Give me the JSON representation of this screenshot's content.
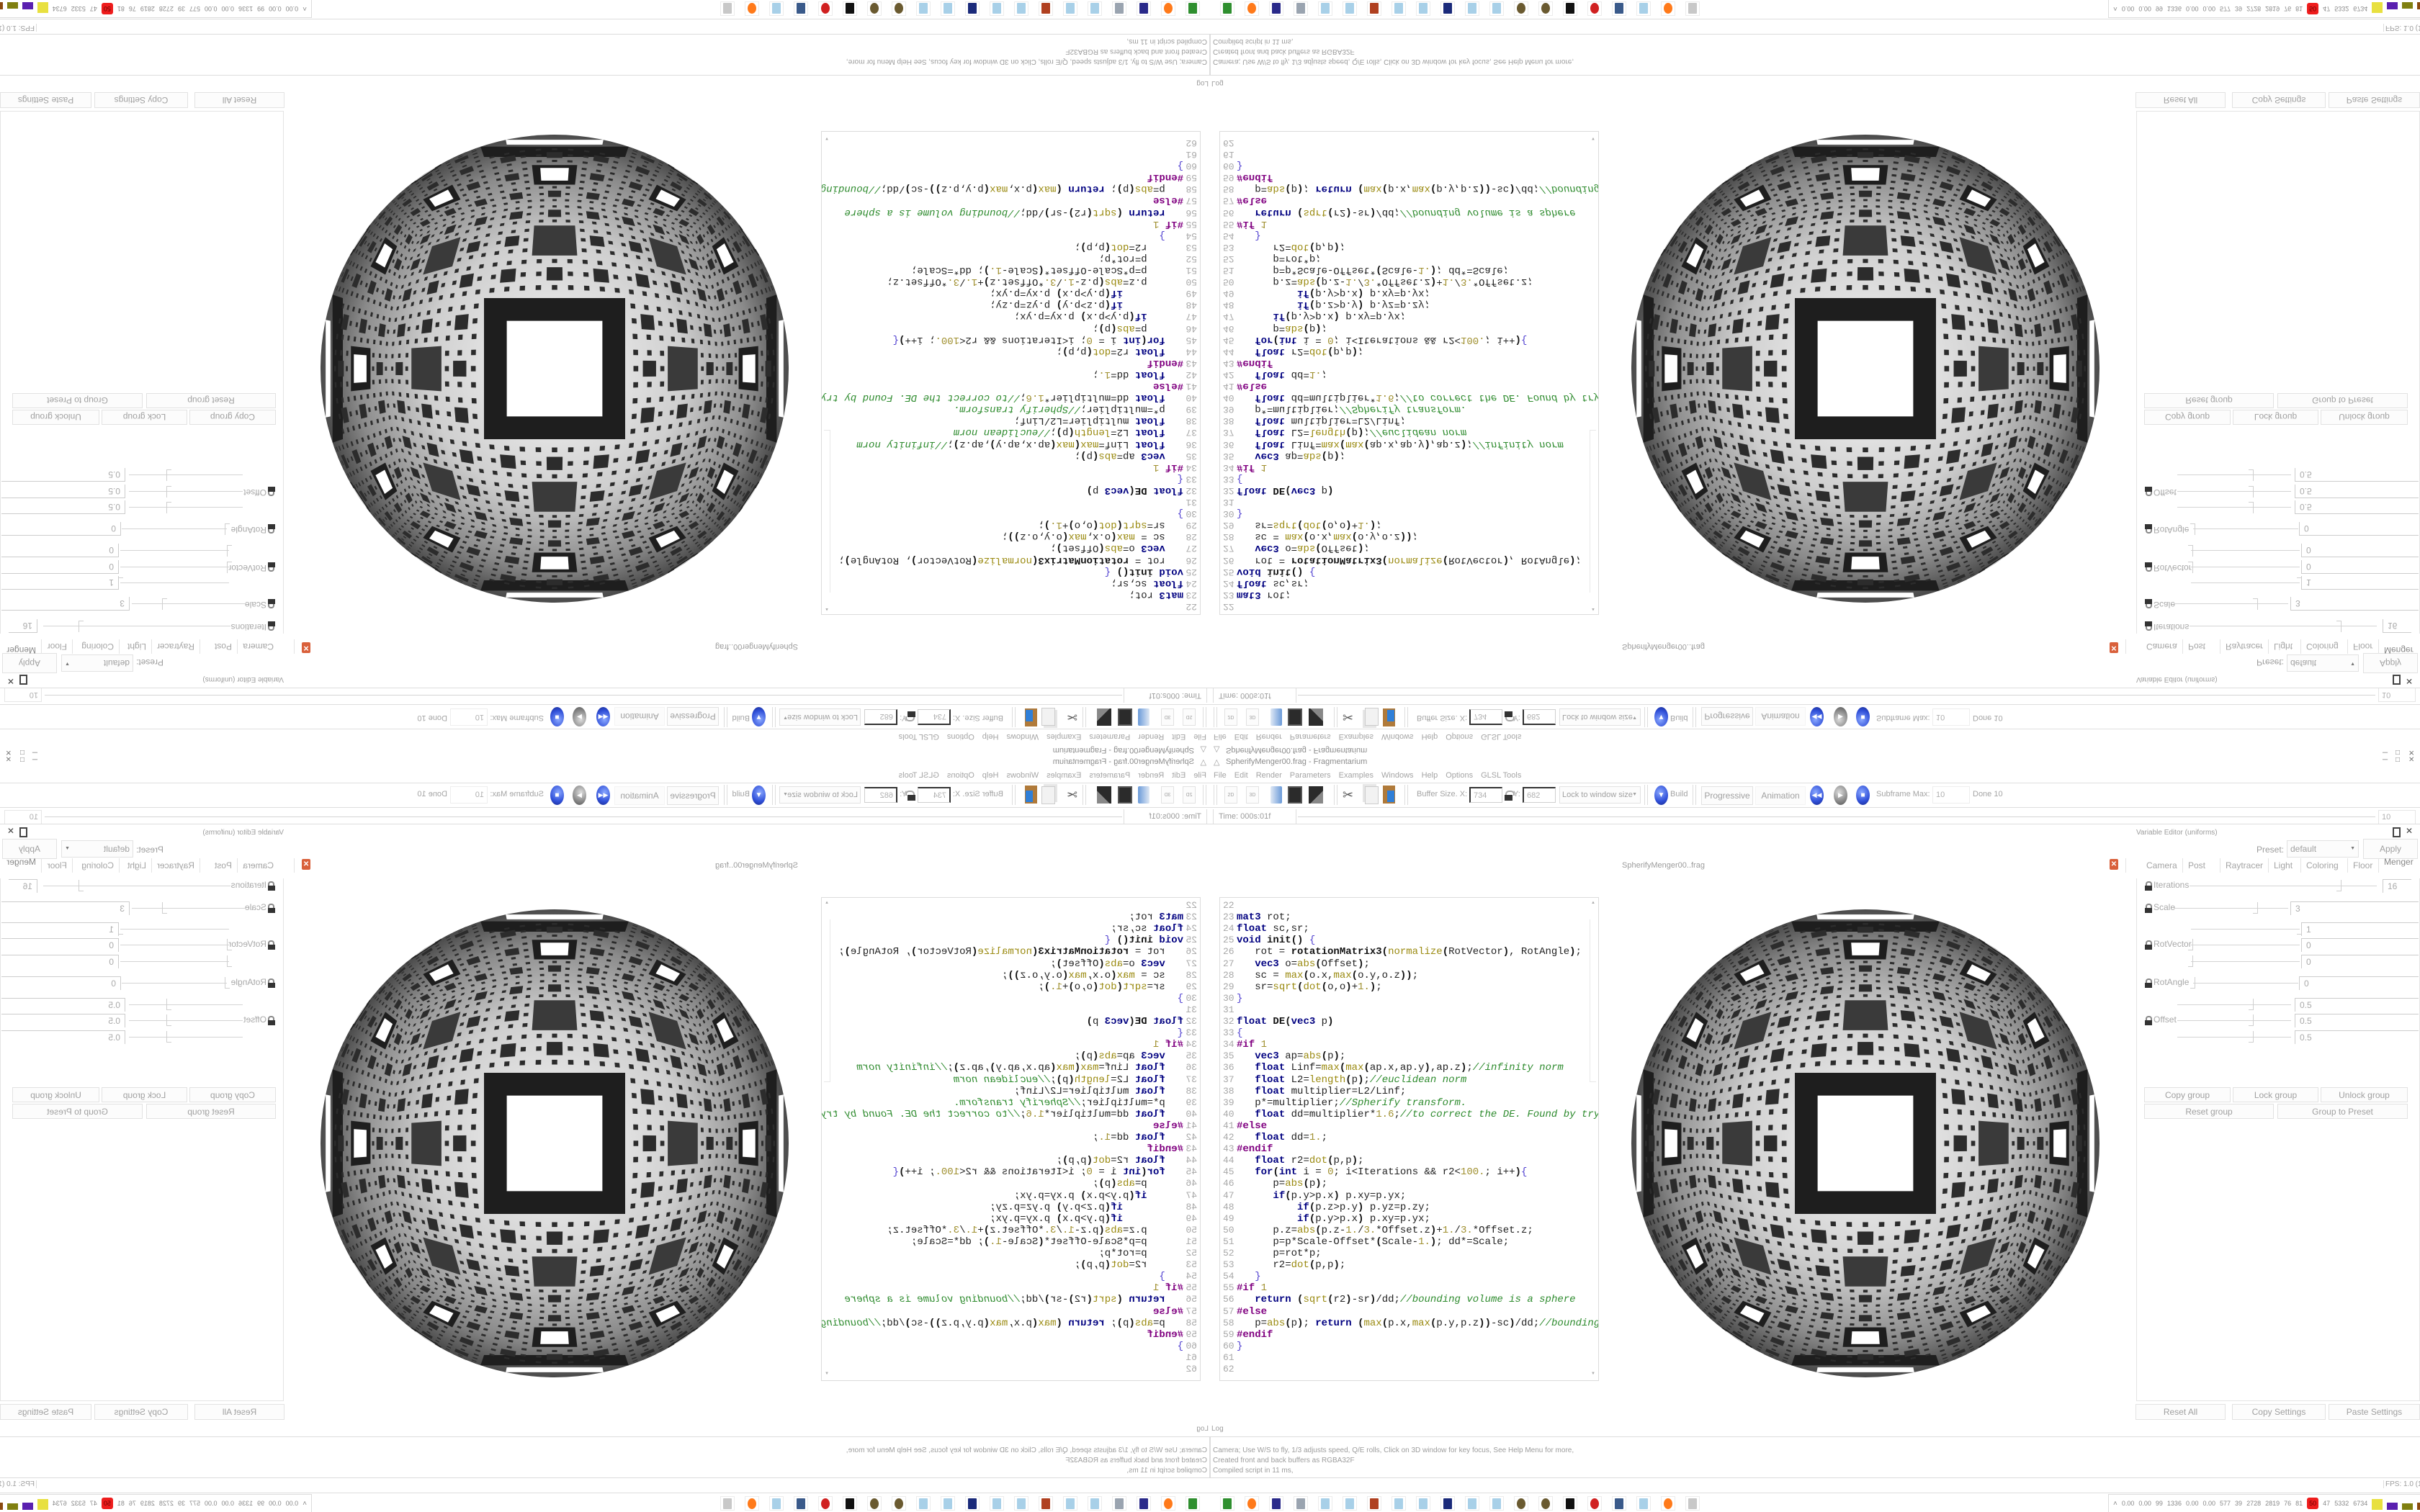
{
  "window": {
    "title": "SpherifyMenger00.frag - Fragmentarium",
    "app_icon": "fragmentarium-triangle-icon"
  },
  "menu": [
    "File",
    "Edit",
    "Render",
    "Parameters",
    "Examples",
    "Windows",
    "Help",
    "Options",
    "GLSL Tools"
  ],
  "toolbar": {
    "btn_2d": "2D",
    "btn_3d": "3D",
    "buffer_label": "Buffer Size. X:",
    "buffer_x": "734",
    "y_label": "Y:",
    "buffer_y": "682",
    "lock_mode": "Lock to window size",
    "build": "Build",
    "progressive": "Progressive",
    "animation": "Animation",
    "subframe_label": "Subframe Max:",
    "subframe_max": "10",
    "done": "Done 10"
  },
  "timeline": {
    "time": "Time: 000s:01f",
    "end_frame": "10"
  },
  "editor": {
    "tab": "SpherifyMenger00..frag",
    "lines": [
      {
        "n": "22",
        "t": ""
      },
      {
        "n": "23",
        "t": "mat3 rot;"
      },
      {
        "n": "24",
        "t": "float sc,sr;"
      },
      {
        "n": "25",
        "t": "void init() {"
      },
      {
        "n": "26",
        "t": "   rot = rotationMatrix3(normalize(RotVector), RotAngle);"
      },
      {
        "n": "27",
        "t": "   vec3 o=abs(Offset);"
      },
      {
        "n": "28",
        "t": "   sc = max(o.x,max(o.y,o.z));"
      },
      {
        "n": "29",
        "t": "   sr=sqrt(dot(o,o)+1.);"
      },
      {
        "n": "30",
        "t": "}"
      },
      {
        "n": "31",
        "t": ""
      },
      {
        "n": "32",
        "t": "float DE(vec3 p)"
      },
      {
        "n": "33",
        "t": "{"
      },
      {
        "n": "34",
        "t": "#if 1"
      },
      {
        "n": "35",
        "t": "   vec3 ap=abs(p);"
      },
      {
        "n": "36",
        "t": "   float Linf=max(max(ap.x,ap.y),ap.z);//infinity norm"
      },
      {
        "n": "37",
        "t": "   float L2=length(p);//euclidean norm"
      },
      {
        "n": "38",
        "t": "   float multiplier=L2/Linf;"
      },
      {
        "n": "39",
        "t": "   p*=multiplier;//Spherify transform."
      },
      {
        "n": "40",
        "t": "   float dd=multiplier*1.6;//to correct the DE. Found by try"
      },
      {
        "n": "41",
        "t": "#else"
      },
      {
        "n": "42",
        "t": "   float dd=1.;"
      },
      {
        "n": "43",
        "t": "#endif"
      },
      {
        "n": "44",
        "t": "   float r2=dot(p,p);"
      },
      {
        "n": "45",
        "t": "   for(int i = 0; i<Iterations && r2<100.; i++){"
      },
      {
        "n": "46",
        "t": "      p=abs(p);"
      },
      {
        "n": "47",
        "t": "      if(p.y>p.x) p.xy=p.yx;"
      },
      {
        "n": "48",
        "t": "          if(p.z>p.y) p.yz=p.zy;"
      },
      {
        "n": "49",
        "t": "          if(p.y>p.x) p.xy=p.yx;"
      },
      {
        "n": "50",
        "t": "      p.z=abs(p.z-1./3.*Offset.z)+1./3.*Offset.z;"
      },
      {
        "n": "51",
        "t": "      p=p*Scale-Offset*(Scale-1.); dd*=Scale;"
      },
      {
        "n": "52",
        "t": "      p=rot*p;"
      },
      {
        "n": "53",
        "t": "      r2=dot(p,p);"
      },
      {
        "n": "54",
        "t": "   }"
      },
      {
        "n": "55",
        "t": "#if 1"
      },
      {
        "n": "56",
        "t": "   return (sqrt(r2)-sr)/dd;//bounding volume is a sphere"
      },
      {
        "n": "57",
        "t": "#else"
      },
      {
        "n": "58",
        "t": "   p=abs(p); return (max(p.x,max(p.y,p.z))-sc)/dd;//bounding"
      },
      {
        "n": "59",
        "t": "#endif"
      },
      {
        "n": "60",
        "t": "}"
      },
      {
        "n": "61",
        "t": ""
      },
      {
        "n": "62",
        "t": ""
      }
    ]
  },
  "variable_editor": {
    "title": "Variable Editor (uniforms)",
    "preset_label": "Preset:",
    "preset": "default",
    "apply": "Apply",
    "tabs": [
      "Camera",
      "Post",
      "Raytracer",
      "Light",
      "Coloring",
      "Floor",
      "Menger"
    ],
    "active_tab": "Menger",
    "params": {
      "iterations": {
        "label": "Iterations",
        "value": "16",
        "slider_level": 0.8,
        "locked": false
      },
      "scale": {
        "label": "Scale",
        "value": "3",
        "slider_level": 0.72,
        "locked": false
      },
      "rotvector": {
        "label": "RotVector",
        "values": [
          "1",
          "0",
          "0"
        ],
        "slider_levels": [
          1,
          0,
          0
        ],
        "locked": false
      },
      "rotangle": {
        "label": "RotAngle",
        "value": "0",
        "slider_level": 0,
        "locked": false
      },
      "offset": {
        "label": "Offset",
        "values": [
          "0.5",
          "0.5",
          "0.5"
        ],
        "slider_levels": [
          0.65,
          0.65,
          0.65
        ],
        "locked": false
      }
    },
    "group_buttons": {
      "copy": "Copy group",
      "lock": "Lock group",
      "unlock": "Unlock group",
      "reset": "Reset group",
      "to_preset": "Group to Preset"
    },
    "bottom_buttons": {
      "reset_all": "Reset All",
      "copy_settings": "Copy Settings",
      "paste_settings": "Paste Settings"
    }
  },
  "log": {
    "label": "Log",
    "lines": [
      "Camera; Use W/S to fly, 1/3 adjusts speed, Q/E rolls, Click on 3D window for key focus, See Help Menu for more,",
      "Created front and back buffers as RGBA32F",
      "Compiled script in 11 ms,"
    ]
  },
  "status": {
    "fps": "FPS: 1.0 (1s)"
  },
  "taskbar": {
    "icons": [
      {
        "name": "terminal-icon",
        "color": "#2f8f2f"
      },
      {
        "name": "firefox-icon",
        "color": "#ff7a1a"
      },
      {
        "name": "floppy-64-icon",
        "color": "#2a2a8a"
      },
      {
        "name": "scroll-icon",
        "color": "#9aa4b0"
      },
      {
        "name": "notepad-icon",
        "color": "#a8d0e8"
      },
      {
        "name": "notepad-icon",
        "color": "#a8d0e8"
      },
      {
        "name": "bug-icon",
        "color": "#b04020"
      },
      {
        "name": "notepad-icon",
        "color": "#a8d0e8"
      },
      {
        "name": "notepad-icon",
        "color": "#a8d0e8"
      },
      {
        "name": "jpeg-viewer-icon",
        "color": "#1a2a7a"
      },
      {
        "name": "notepad-icon",
        "color": "#a8d0e8"
      },
      {
        "name": "notepad-icon",
        "color": "#a8d0e8"
      },
      {
        "name": "bronze-disc-icon",
        "color": "#6a5a30"
      },
      {
        "name": "bronze-disc-icon",
        "color": "#6a5a30"
      },
      {
        "name": "inkscape-icon",
        "color": "#111111"
      },
      {
        "name": "red-app-icon",
        "color": "#d02020"
      },
      {
        "name": "monitor-icon",
        "color": "#3a5a8a"
      },
      {
        "name": "notepad-icon",
        "color": "#a8d0e8"
      },
      {
        "name": "firefox-icon",
        "color": "#ff7a1a"
      },
      {
        "name": "fragmentarium-icon",
        "color": "#c8c8c8"
      }
    ],
    "tray": [
      "0.00",
      "0.00",
      "99",
      "1336",
      "0.00",
      "0.00",
      "577",
      "39",
      "2728",
      "2819",
      "76",
      "81"
    ],
    "tray_badge": "50",
    "tray_after": [
      "47",
      "5332",
      "6734"
    ],
    "badge_color": "#ee1c1c"
  },
  "colors": {
    "accent_blue": "#2f4fd8",
    "close_orange": "#d9603b"
  }
}
